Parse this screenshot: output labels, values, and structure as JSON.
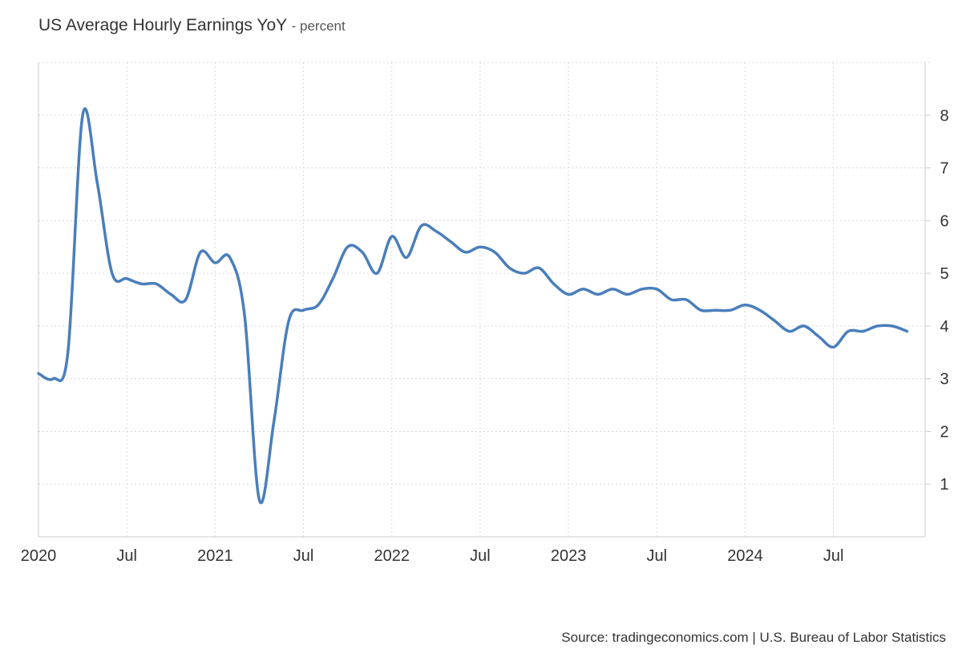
{
  "header": {
    "title": "US Average Hourly Earnings YoY",
    "subtitle": "- percent"
  },
  "footer": {
    "source": "Source: tradingeconomics.com | U.S. Bureau of Labor Statistics"
  },
  "colors": {
    "line": "#4a7ebb",
    "grid": "#d9d9d9",
    "axis": "#cccccc"
  },
  "chart_data": {
    "type": "line",
    "title": "US Average Hourly Earnings YoY",
    "subtitle": "- percent",
    "xlabel": "",
    "ylabel": "",
    "x_ticks": [
      {
        "date": "2020-01",
        "label": "2020"
      },
      {
        "date": "2020-07",
        "label": "Jul"
      },
      {
        "date": "2021-01",
        "label": "2021"
      },
      {
        "date": "2021-07",
        "label": "Jul"
      },
      {
        "date": "2022-01",
        "label": "2022"
      },
      {
        "date": "2022-07",
        "label": "Jul"
      },
      {
        "date": "2023-01",
        "label": "2023"
      },
      {
        "date": "2023-07",
        "label": "Jul"
      },
      {
        "date": "2024-01",
        "label": "2024"
      },
      {
        "date": "2024-07",
        "label": "Jul"
      }
    ],
    "y_ticks": [
      1,
      2,
      3,
      4,
      5,
      6,
      7,
      8
    ],
    "ylim": [
      0,
      9
    ],
    "xlim": [
      "2020-01",
      "2024-11"
    ],
    "y_axis_position": "right",
    "grid": true,
    "series": [
      {
        "points": [
          [
            "2020-01",
            3.1
          ],
          [
            "2020-02",
            3.0
          ],
          [
            "2020-03",
            3.5
          ],
          [
            "2020-04",
            8.0
          ],
          [
            "2020-05",
            6.7
          ],
          [
            "2020-06",
            5.0
          ],
          [
            "2020-07",
            4.9
          ],
          [
            "2020-08",
            4.8
          ],
          [
            "2020-09",
            4.8
          ],
          [
            "2020-10",
            4.6
          ],
          [
            "2020-11",
            4.5
          ],
          [
            "2020-12",
            5.4
          ],
          [
            "2021-01",
            5.2
          ],
          [
            "2021-02",
            5.3
          ],
          [
            "2021-03",
            4.2
          ],
          [
            "2021-04",
            0.7
          ],
          [
            "2021-05",
            2.2
          ],
          [
            "2021-06",
            4.1
          ],
          [
            "2021-07",
            4.3
          ],
          [
            "2021-08",
            4.4
          ],
          [
            "2021-09",
            4.9
          ],
          [
            "2021-10",
            5.5
          ],
          [
            "2021-11",
            5.4
          ],
          [
            "2021-12",
            5.0
          ],
          [
            "2022-01",
            5.7
          ],
          [
            "2022-02",
            5.3
          ],
          [
            "2022-03",
            5.9
          ],
          [
            "2022-04",
            5.8
          ],
          [
            "2022-05",
            5.6
          ],
          [
            "2022-06",
            5.4
          ],
          [
            "2022-07",
            5.5
          ],
          [
            "2022-08",
            5.4
          ],
          [
            "2022-09",
            5.1
          ],
          [
            "2022-10",
            5.0
          ],
          [
            "2022-11",
            5.1
          ],
          [
            "2022-12",
            4.8
          ],
          [
            "2023-01",
            4.6
          ],
          [
            "2023-02",
            4.7
          ],
          [
            "2023-03",
            4.6
          ],
          [
            "2023-04",
            4.7
          ],
          [
            "2023-05",
            4.6
          ],
          [
            "2023-06",
            4.7
          ],
          [
            "2023-07",
            4.7
          ],
          [
            "2023-08",
            4.5
          ],
          [
            "2023-09",
            4.5
          ],
          [
            "2023-10",
            4.3
          ],
          [
            "2023-11",
            4.3
          ],
          [
            "2023-12",
            4.3
          ],
          [
            "2024-01",
            4.4
          ],
          [
            "2024-02",
            4.3
          ],
          [
            "2024-03",
            4.1
          ],
          [
            "2024-04",
            3.9
          ],
          [
            "2024-05",
            4.0
          ],
          [
            "2024-06",
            3.8
          ],
          [
            "2024-07",
            3.6
          ],
          [
            "2024-08",
            3.9
          ],
          [
            "2024-09",
            3.9
          ],
          [
            "2024-10",
            4.0
          ],
          [
            "2024-11",
            4.0
          ],
          [
            "2024-12",
            3.9
          ]
        ]
      }
    ]
  }
}
